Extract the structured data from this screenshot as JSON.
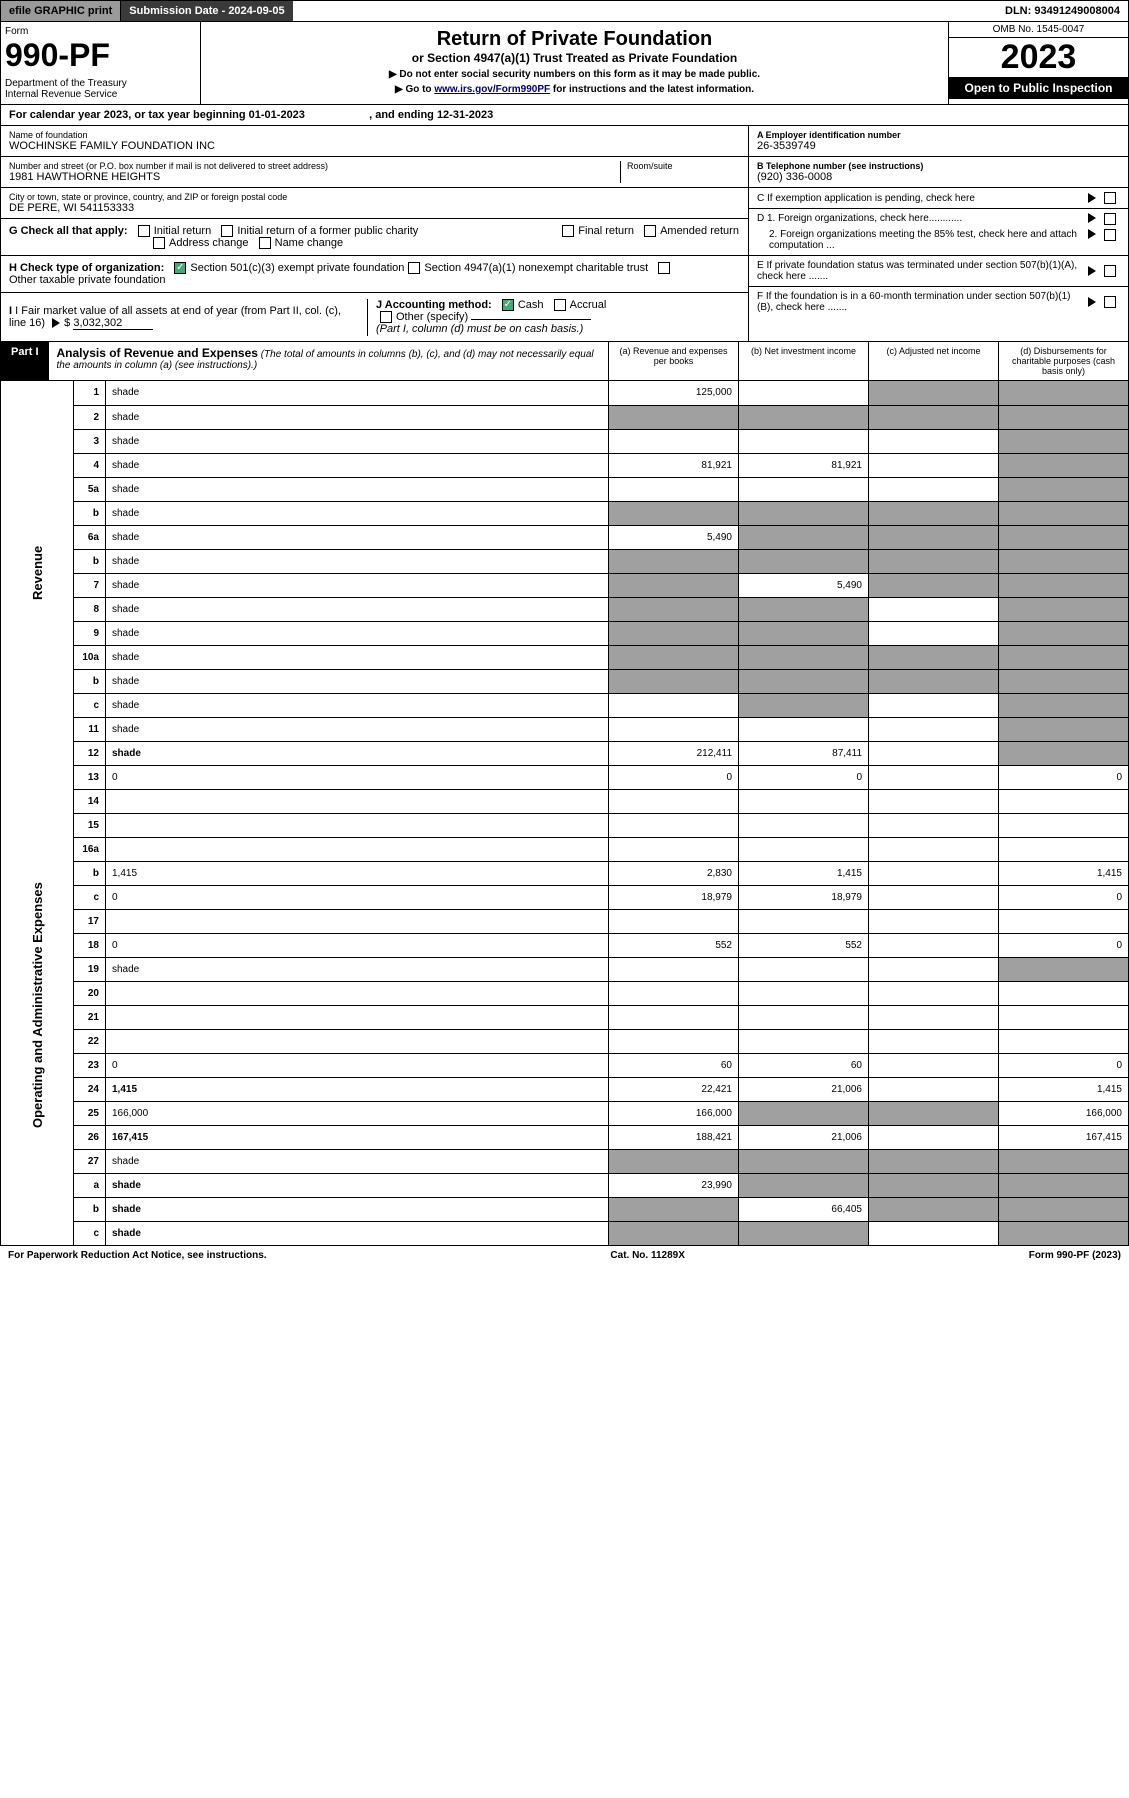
{
  "topbar": {
    "efile": "efile GRAPHIC print",
    "submission": "Submission Date - 2024-09-05",
    "dln": "DLN: 93491249008004"
  },
  "header": {
    "form_label": "Form",
    "form_number": "990-PF",
    "dept": "Department of the Treasury\nInternal Revenue Service",
    "title": "Return of Private Foundation",
    "subtitle": "or Section 4947(a)(1) Trust Treated as Private Foundation",
    "note1": "▶ Do not enter social security numbers on this form as it may be made public.",
    "note2_pre": "▶ Go to ",
    "note2_link": "www.irs.gov/Form990PF",
    "note2_post": " for instructions and the latest information.",
    "omb": "OMB No. 1545-0047",
    "year": "2023",
    "inspect": "Open to Public Inspection"
  },
  "calyear": {
    "text": "For calendar year 2023, or tax year beginning 01-01-2023",
    "ending": ", and ending 12-31-2023"
  },
  "entity": {
    "name_lbl": "Name of foundation",
    "name": "WOCHINSKE FAMILY FOUNDATION INC",
    "addr_lbl": "Number and street (or P.O. box number if mail is not delivered to street address)",
    "addr": "1981 HAWTHORNE HEIGHTS",
    "room_lbl": "Room/suite",
    "city_lbl": "City or town, state or province, country, and ZIP or foreign postal code",
    "city": "DE PERE, WI  541153333",
    "ein_lbl": "A Employer identification number",
    "ein": "26-3539749",
    "phone_lbl": "B Telephone number (see instructions)",
    "phone": "(920) 336-0008",
    "c_lbl": "C If exemption application is pending, check here",
    "d1": "D 1. Foreign organizations, check here............",
    "d2": "2. Foreign organizations meeting the 85% test, check here and attach computation ...",
    "e_lbl": "E  If private foundation status was terminated under section 507(b)(1)(A), check here .......",
    "f_lbl": "F  If the foundation is in a 60-month termination under section 507(b)(1)(B), check here .......",
    "g_lbl": "G Check all that apply:",
    "g_opts": [
      "Initial return",
      "Initial return of a former public charity",
      "Final return",
      "Amended return",
      "Address change",
      "Name change"
    ],
    "h_lbl": "H Check type of organization:",
    "h1": "Section 501(c)(3) exempt private foundation",
    "h2": "Section 4947(a)(1) nonexempt charitable trust",
    "h3": "Other taxable private foundation",
    "i_lbl": "I Fair market value of all assets at end of year (from Part II, col. (c), line 16)",
    "i_val": "3,032,302",
    "j_lbl": "J Accounting method:",
    "j1": "Cash",
    "j2": "Accrual",
    "j3": "Other (specify)",
    "j_note": "(Part I, column (d) must be on cash basis.)"
  },
  "part1": {
    "label": "Part I",
    "title": "Analysis of Revenue and Expenses",
    "title_note": "(The total of amounts in columns (b), (c), and (d) may not necessarily equal the amounts in column (a) (see instructions).)",
    "col_a": "(a)   Revenue and expenses per books",
    "col_b": "(b)   Net investment income",
    "col_c": "(c)   Adjusted net income",
    "col_d": "(d)   Disbursements for charitable purposes (cash basis only)"
  },
  "sides": {
    "revenue": "Revenue",
    "expenses": "Operating and Administrative Expenses"
  },
  "rows": [
    {
      "n": "1",
      "d": "shade",
      "a": "125,000",
      "b": "",
      "c": "shade"
    },
    {
      "n": "2",
      "d": "shade",
      "a": "shade",
      "b": "shade",
      "c": "shade"
    },
    {
      "n": "3",
      "d": "shade",
      "a": "",
      "b": "",
      "c": ""
    },
    {
      "n": "4",
      "d": "shade",
      "a": "81,921",
      "b": "81,921",
      "c": ""
    },
    {
      "n": "5a",
      "d": "shade",
      "a": "",
      "b": "",
      "c": ""
    },
    {
      "n": "b",
      "d": "shade",
      "a": "shade",
      "b": "shade",
      "c": "shade"
    },
    {
      "n": "6a",
      "d": "shade",
      "a": "5,490",
      "b": "shade",
      "c": "shade"
    },
    {
      "n": "b",
      "d": "shade",
      "a": "shade",
      "b": "shade",
      "c": "shade"
    },
    {
      "n": "7",
      "d": "shade",
      "a": "shade",
      "b": "5,490",
      "c": "shade"
    },
    {
      "n": "8",
      "d": "shade",
      "a": "shade",
      "b": "shade",
      "c": ""
    },
    {
      "n": "9",
      "d": "shade",
      "a": "shade",
      "b": "shade",
      "c": ""
    },
    {
      "n": "10a",
      "d": "shade",
      "a": "shade",
      "b": "shade",
      "c": "shade"
    },
    {
      "n": "b",
      "d": "shade",
      "a": "shade",
      "b": "shade",
      "c": "shade"
    },
    {
      "n": "c",
      "d": "shade",
      "a": "",
      "b": "shade",
      "c": ""
    },
    {
      "n": "11",
      "d": "shade",
      "a": "",
      "b": "",
      "c": ""
    },
    {
      "n": "12",
      "d": "shade",
      "a": "212,411",
      "b": "87,411",
      "c": "",
      "bold": true
    },
    {
      "n": "13",
      "d": "0",
      "a": "0",
      "b": "0",
      "c": ""
    },
    {
      "n": "14",
      "d": "",
      "a": "",
      "b": "",
      "c": ""
    },
    {
      "n": "15",
      "d": "",
      "a": "",
      "b": "",
      "c": ""
    },
    {
      "n": "16a",
      "d": "",
      "a": "",
      "b": "",
      "c": ""
    },
    {
      "n": "b",
      "d": "1,415",
      "a": "2,830",
      "b": "1,415",
      "c": ""
    },
    {
      "n": "c",
      "d": "0",
      "a": "18,979",
      "b": "18,979",
      "c": ""
    },
    {
      "n": "17",
      "d": "",
      "a": "",
      "b": "",
      "c": ""
    },
    {
      "n": "18",
      "d": "0",
      "a": "552",
      "b": "552",
      "c": ""
    },
    {
      "n": "19",
      "d": "shade",
      "a": "",
      "b": "",
      "c": ""
    },
    {
      "n": "20",
      "d": "",
      "a": "",
      "b": "",
      "c": ""
    },
    {
      "n": "21",
      "d": "",
      "a": "",
      "b": "",
      "c": ""
    },
    {
      "n": "22",
      "d": "",
      "a": "",
      "b": "",
      "c": ""
    },
    {
      "n": "23",
      "d": "0",
      "a": "60",
      "b": "60",
      "c": ""
    },
    {
      "n": "24",
      "d": "1,415",
      "a": "22,421",
      "b": "21,006",
      "c": "",
      "bold": true
    },
    {
      "n": "25",
      "d": "166,000",
      "a": "166,000",
      "b": "shade",
      "c": "shade"
    },
    {
      "n": "26",
      "d": "167,415",
      "a": "188,421",
      "b": "21,006",
      "c": "",
      "bold": true
    },
    {
      "n": "27",
      "d": "shade",
      "a": "shade",
      "b": "shade",
      "c": "shade"
    },
    {
      "n": "a",
      "d": "shade",
      "a": "23,990",
      "b": "shade",
      "c": "shade",
      "bold": true
    },
    {
      "n": "b",
      "d": "shade",
      "a": "shade",
      "b": "66,405",
      "c": "shade",
      "bold": true
    },
    {
      "n": "c",
      "d": "shade",
      "a": "shade",
      "b": "shade",
      "c": "",
      "bold": true
    }
  ],
  "footer": {
    "left": "For Paperwork Reduction Act Notice, see instructions.",
    "mid": "Cat. No. 11289X",
    "right": "Form 990-PF (2023)"
  }
}
